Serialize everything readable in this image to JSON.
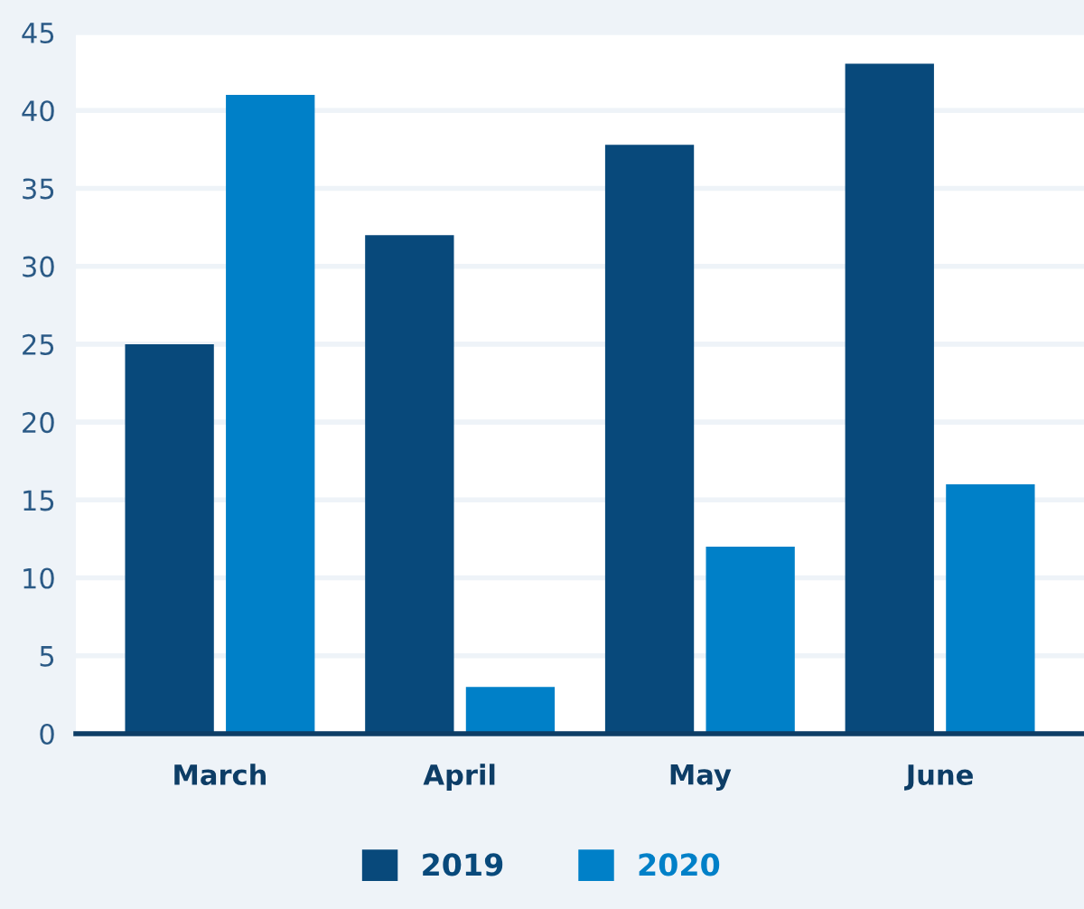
{
  "chart_data": {
    "type": "bar",
    "categories": [
      "March",
      "April",
      "May",
      "June"
    ],
    "series": [
      {
        "name": "2019",
        "color": "#08497b",
        "values": [
          25,
          32,
          37.8,
          43
        ]
      },
      {
        "name": "2020",
        "color": "#0080c8",
        "values": [
          41,
          3,
          12,
          16
        ]
      }
    ],
    "ylim": [
      0,
      45
    ],
    "yticks": [
      0,
      5,
      10,
      15,
      20,
      25,
      30,
      35,
      40,
      45
    ],
    "grid": "y",
    "legend": "bottom"
  }
}
